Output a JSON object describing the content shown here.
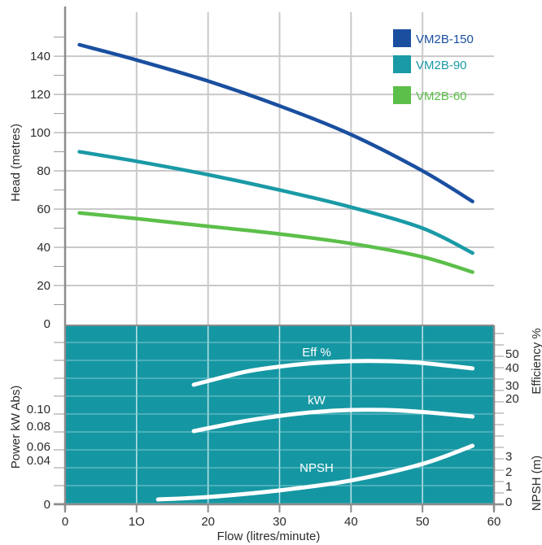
{
  "chart_data": [
    {
      "type": "line",
      "title": "",
      "xlabel": "Flow (litres/minute)",
      "ylabel": "Head (metres)",
      "xlim": [
        0,
        60
      ],
      "ylim": [
        0,
        150
      ],
      "x_ticks": [
        "0",
        "1O",
        "20",
        "30",
        "40",
        "50",
        "60"
      ],
      "y_ticks": [
        "0",
        "20",
        "40",
        "60",
        "80",
        "100",
        "120",
        "140"
      ],
      "grid": true,
      "legend_position": "top-right",
      "series": [
        {
          "name": "VM2B-150",
          "color": "#1a4fa0",
          "x": [
            2,
            10,
            20,
            30,
            40,
            50,
            57
          ],
          "y": [
            146,
            138,
            127,
            114,
            99,
            80,
            64
          ]
        },
        {
          "name": "VM2B-90",
          "color": "#1a9aa6",
          "x": [
            2,
            10,
            20,
            30,
            40,
            50,
            57
          ],
          "y": [
            90,
            85,
            78,
            70,
            61,
            50,
            37
          ]
        },
        {
          "name": "VM2B-60",
          "color": "#5cbf4a",
          "x": [
            2,
            10,
            20,
            30,
            40,
            50,
            57
          ],
          "y": [
            58,
            55,
            51,
            47,
            42,
            35,
            27
          ]
        }
      ]
    },
    {
      "type": "line",
      "title": "",
      "xlabel": "Flow (litres/minute)",
      "ylabel": "Power kW Abs)",
      "ylabel_right_top": "Efficiency %",
      "ylabel_right_bottom": "NPSH (m)",
      "xlim": [
        0,
        60
      ],
      "background": "#1597a3",
      "power_ticks": [
        "0.10",
        "0.08",
        "0.06",
        "0.04",
        "0"
      ],
      "efficiency_ticks": [
        "50",
        "40",
        "30",
        "20"
      ],
      "npsh_ticks": [
        "3",
        "2",
        "1",
        "0"
      ],
      "series": [
        {
          "name": "Eff %",
          "color": "#ffffff",
          "x": [
            18,
            25,
            30,
            35,
            40,
            45,
            50,
            57
          ],
          "y": [
            20,
            34,
            40,
            44,
            46,
            46,
            44,
            38
          ]
        },
        {
          "name": "kW",
          "color": "#ffffff",
          "x": [
            18,
            25,
            30,
            35,
            40,
            45,
            50,
            57
          ],
          "y": [
            0.068,
            0.083,
            0.091,
            0.097,
            0.1,
            0.1,
            0.097,
            0.09
          ]
        },
        {
          "name": "NPSH",
          "color": "#ffffff",
          "x": [
            13,
            20,
            30,
            40,
            50,
            57
          ],
          "y": [
            0.05,
            0.2,
            0.6,
            1.2,
            2.2,
            3.3
          ]
        }
      ]
    }
  ]
}
